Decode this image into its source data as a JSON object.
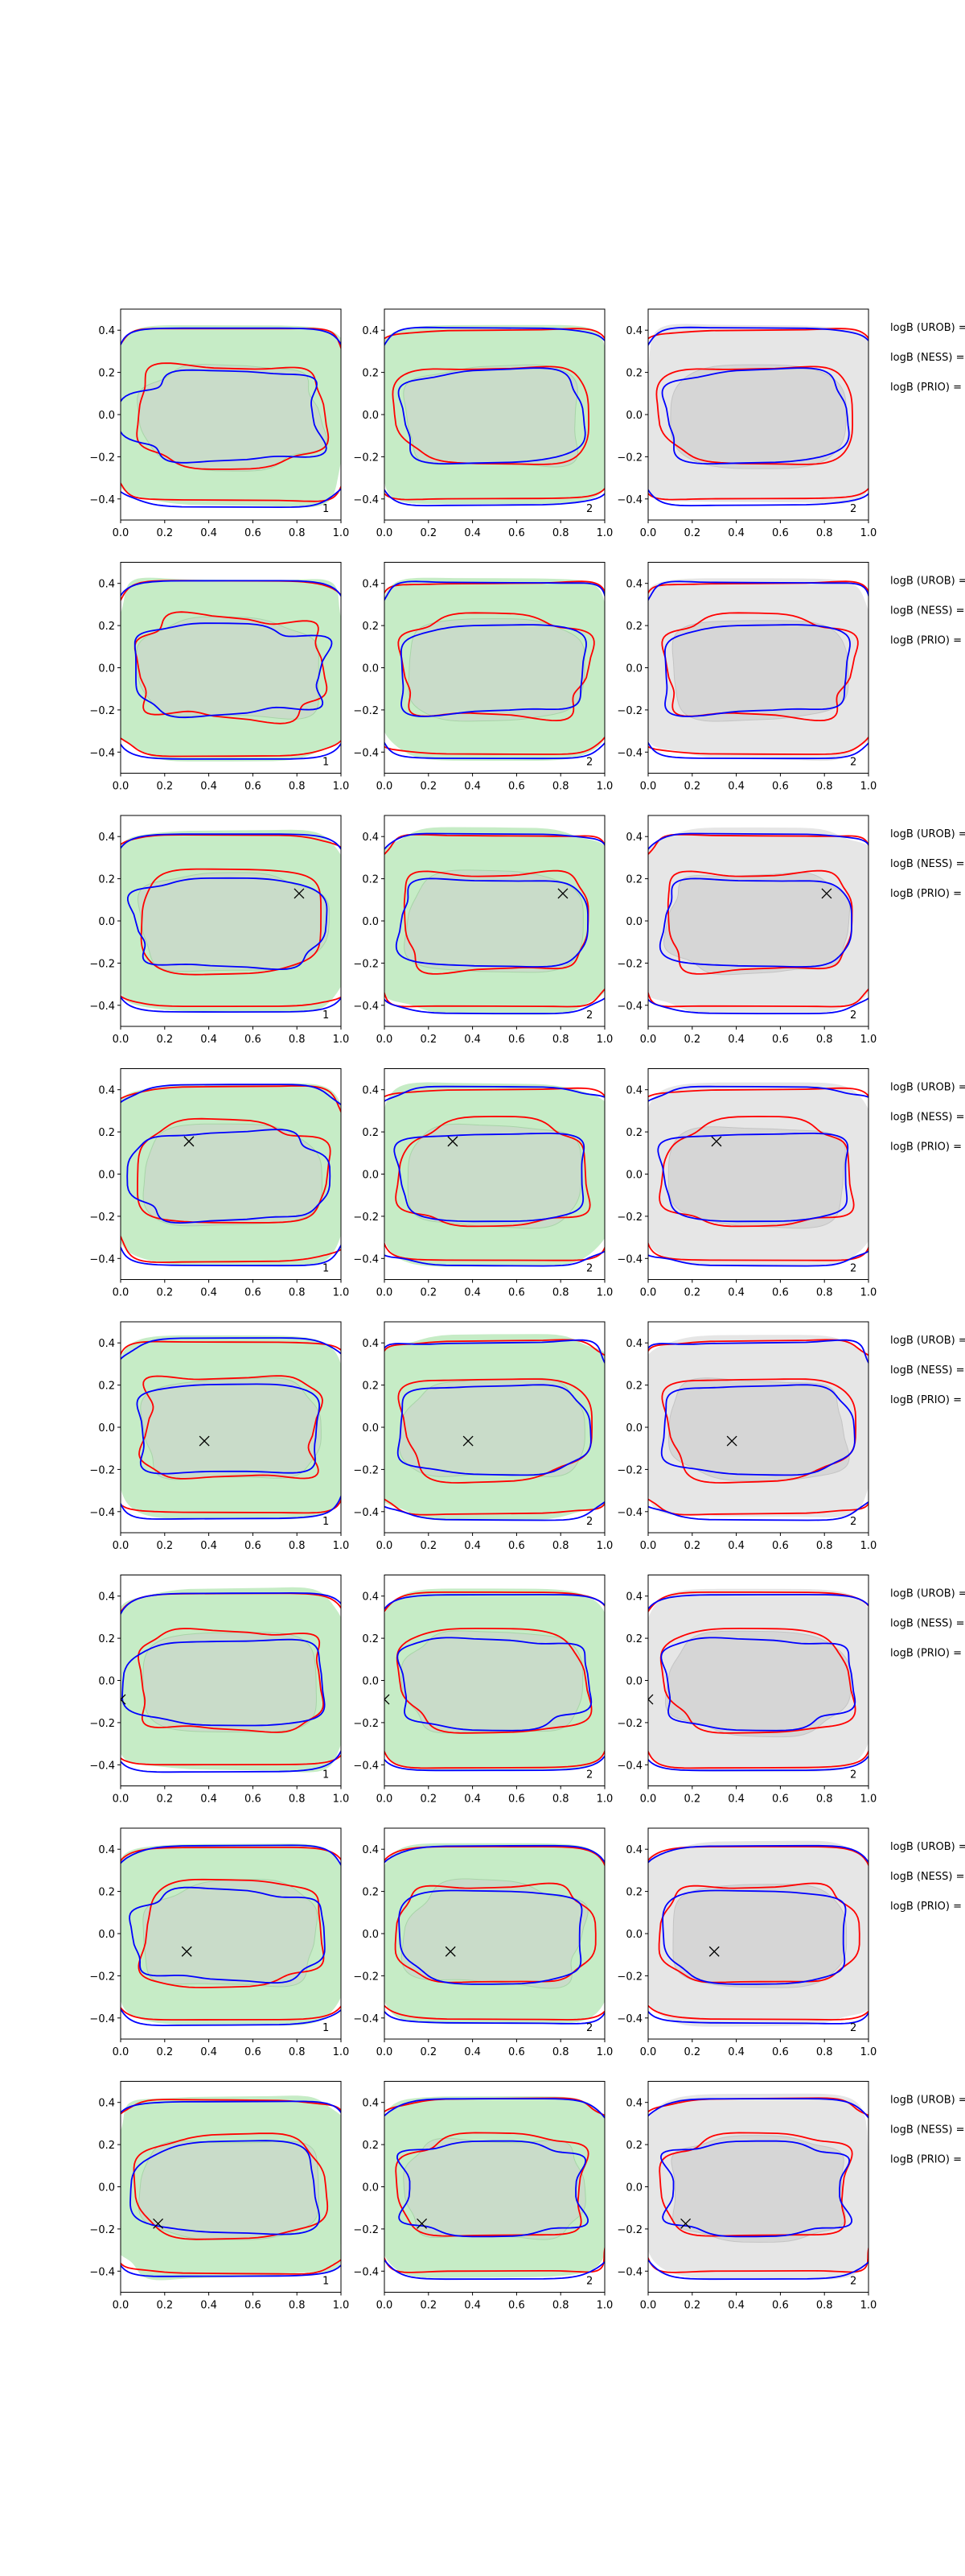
{
  "chart_data": {
    "type": "contour-grid",
    "rows": 8,
    "columns": 3,
    "xlim": [
      0.0,
      1.0
    ],
    "ylim": [
      -0.5,
      0.5
    ],
    "xticks": [
      "0.0",
      "0.2",
      "0.4",
      "0.6",
      "0.8",
      "1.0"
    ],
    "xtick_values": [
      0.0,
      0.2,
      0.4,
      0.6,
      0.8,
      1.0
    ],
    "yticks": [
      "0.4",
      "0.2",
      "0.0",
      "−0.2",
      "−0.4"
    ],
    "ytick_values": [
      0.4,
      0.2,
      0.0,
      -0.2,
      -0.4
    ],
    "series": [
      {
        "name": "red contours",
        "color": "#ff0000"
      },
      {
        "name": "blue contours",
        "color": "#0000ff"
      }
    ],
    "fills": {
      "green_outer": "#c6ecc6",
      "green_inner": "#c9dcc9",
      "grey_outer": "#e6e6e6",
      "grey_inner": "#d6d6d6"
    },
    "column_corner_labels": [
      "1",
      "2",
      "2"
    ],
    "column_fill_style": [
      "green",
      "green",
      "grey"
    ],
    "side_labels": [
      "logB (UROB) =",
      "logB (NESS) =",
      "logB (PRIO) ="
    ],
    "marker_symbol": "x",
    "markers": [
      null,
      null,
      {
        "x": 0.81,
        "y": 0.13
      },
      {
        "x": 0.31,
        "y": 0.155
      },
      {
        "x": 0.38,
        "y": -0.065
      },
      {
        "x": 0.0,
        "y": -0.09
      },
      {
        "x": 0.3,
        "y": -0.085
      },
      {
        "x": 0.17,
        "y": -0.175
      }
    ]
  }
}
